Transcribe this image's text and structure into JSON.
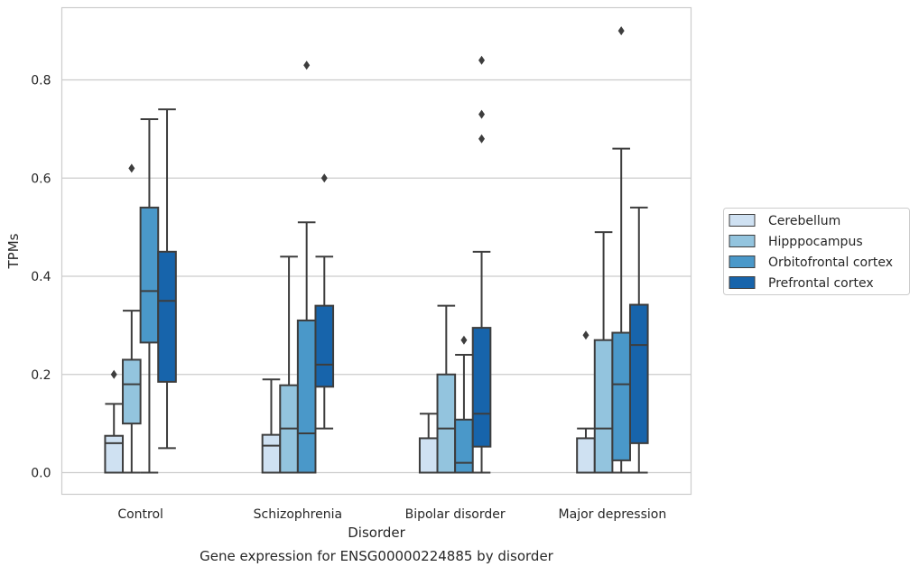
{
  "chart_data": {
    "type": "box",
    "caption": "Gene expression for ENSG00000224885 by disorder",
    "xlabel": "Disorder",
    "ylabel": "TPMs",
    "ylim": [
      -0.045,
      0.95
    ],
    "yticks": [
      0.0,
      0.2,
      0.4,
      0.6,
      0.8
    ],
    "ytick_labels": [
      "0.0",
      "0.2",
      "0.4",
      "0.6",
      "0.8"
    ],
    "grid": "horizontal",
    "legend_position": "outside-right",
    "categories": [
      "Control",
      "Schizophrenia",
      "Bipolar disorder",
      "Major depression"
    ],
    "series": [
      {
        "name": "Cerebellum",
        "color": "#cfe1f2",
        "boxes": [
          {
            "min": 0.0,
            "q1": 0.0,
            "median": 0.06,
            "q3": 0.075,
            "max": 0.14,
            "outliers": [
              0.2
            ]
          },
          {
            "min": 0.0,
            "q1": 0.0,
            "median": 0.055,
            "q3": 0.077,
            "max": 0.19,
            "outliers": []
          },
          {
            "min": 0.0,
            "q1": 0.0,
            "median": 0.0,
            "q3": 0.07,
            "max": 0.12,
            "outliers": []
          },
          {
            "min": 0.0,
            "q1": 0.0,
            "median": 0.0,
            "q3": 0.07,
            "max": 0.09,
            "outliers": [
              0.28
            ]
          }
        ]
      },
      {
        "name": "Hipppocampus",
        "color": "#93c4de",
        "boxes": [
          {
            "min": 0.0,
            "q1": 0.1,
            "median": 0.18,
            "q3": 0.23,
            "max": 0.33,
            "outliers": [
              0.62
            ]
          },
          {
            "min": 0.0,
            "q1": 0.0,
            "median": 0.09,
            "q3": 0.178,
            "max": 0.44,
            "outliers": []
          },
          {
            "min": 0.0,
            "q1": 0.0,
            "median": 0.09,
            "q3": 0.2,
            "max": 0.34,
            "outliers": []
          },
          {
            "min": 0.0,
            "q1": 0.0,
            "median": 0.09,
            "q3": 0.27,
            "max": 0.49,
            "outliers": []
          }
        ]
      },
      {
        "name": "Orbitofrontal cortex",
        "color": "#4a98c9",
        "boxes": [
          {
            "min": 0.0,
            "q1": 0.265,
            "median": 0.37,
            "q3": 0.54,
            "max": 0.72,
            "outliers": []
          },
          {
            "min": 0.0,
            "q1": 0.0,
            "median": 0.08,
            "q3": 0.31,
            "max": 0.51,
            "outliers": [
              0.83
            ]
          },
          {
            "min": 0.0,
            "q1": 0.0,
            "median": 0.02,
            "q3": 0.108,
            "max": 0.24,
            "outliers": [
              0.27
            ]
          },
          {
            "min": 0.0,
            "q1": 0.025,
            "median": 0.18,
            "q3": 0.285,
            "max": 0.66,
            "outliers": [
              0.9
            ]
          }
        ]
      },
      {
        "name": "Prefrontal cortex",
        "color": "#1764ab",
        "boxes": [
          {
            "min": 0.05,
            "q1": 0.185,
            "median": 0.35,
            "q3": 0.45,
            "max": 0.74,
            "outliers": []
          },
          {
            "min": 0.09,
            "q1": 0.175,
            "median": 0.22,
            "q3": 0.34,
            "max": 0.44,
            "outliers": [
              0.6
            ]
          },
          {
            "min": 0.0,
            "q1": 0.053,
            "median": 0.12,
            "q3": 0.295,
            "max": 0.45,
            "outliers": [
              0.68,
              0.73,
              0.84
            ]
          },
          {
            "min": 0.0,
            "q1": 0.06,
            "median": 0.26,
            "q3": 0.342,
            "max": 0.54,
            "outliers": []
          }
        ]
      }
    ]
  }
}
